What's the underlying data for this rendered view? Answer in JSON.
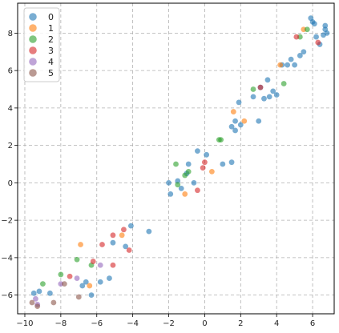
{
  "chart_data": {
    "type": "scatter",
    "title": "",
    "xlabel": "",
    "ylabel": "",
    "xlim": [
      -10.4,
      7.2
    ],
    "ylim": [
      -7.0,
      9.6
    ],
    "x_ticks": [
      -10,
      -8,
      -6,
      -4,
      -2,
      0,
      2,
      4,
      6
    ],
    "y_ticks": [
      -6,
      -4,
      -2,
      0,
      2,
      4,
      6,
      8
    ],
    "grid": true,
    "grid_style": "dashed",
    "legend_position": "top-left",
    "point_alpha": 0.6,
    "series": [
      {
        "name": "0",
        "color": "#1f77b4",
        "points": [
          [
            -9.5,
            -5.9
          ],
          [
            -9.2,
            -5.8
          ],
          [
            -8.6,
            -5.9
          ],
          [
            -6.8,
            -5.5
          ],
          [
            -6.6,
            -5.3
          ],
          [
            -6.3,
            -6.0
          ],
          [
            -5.8,
            -5.3
          ],
          [
            -5.3,
            -5.1
          ],
          [
            -5.1,
            -3.2
          ],
          [
            -4.4,
            -3.4
          ],
          [
            -4.1,
            -2.3
          ],
          [
            -3.1,
            -2.6
          ],
          [
            -2.0,
            0.0
          ],
          [
            -1.9,
            -0.6
          ],
          [
            -1.5,
            0.1
          ],
          [
            -1.3,
            -0.3
          ],
          [
            -1.0,
            0.5
          ],
          [
            -0.9,
            1.0
          ],
          [
            -0.6,
            0.0
          ],
          [
            -0.4,
            1.7
          ],
          [
            0.1,
            1.5
          ],
          [
            1.0,
            1.0
          ],
          [
            1.5,
            1.1
          ],
          [
            1.5,
            3.0
          ],
          [
            1.7,
            3.3
          ],
          [
            1.7,
            2.8
          ],
          [
            1.9,
            4.3
          ],
          [
            2.0,
            3.1
          ],
          [
            2.7,
            4.6
          ],
          [
            3.0,
            3.3
          ],
          [
            3.1,
            5.1
          ],
          [
            3.3,
            4.5
          ],
          [
            3.5,
            5.5
          ],
          [
            3.6,
            4.6
          ],
          [
            3.8,
            4.9
          ],
          [
            4.0,
            4.7
          ],
          [
            4.3,
            6.3
          ],
          [
            4.6,
            6.3
          ],
          [
            4.8,
            6.6
          ],
          [
            5.0,
            6.3
          ],
          [
            5.3,
            6.8
          ],
          [
            5.5,
            7.0
          ],
          [
            5.9,
            8.8
          ],
          [
            6.0,
            8.6
          ],
          [
            6.1,
            8.5
          ],
          [
            6.2,
            7.8
          ],
          [
            6.4,
            7.4
          ],
          [
            6.6,
            7.9
          ],
          [
            6.7,
            8.4
          ],
          [
            6.7,
            8.2
          ],
          [
            6.8,
            8.0
          ]
        ]
      },
      {
        "name": "1",
        "color": "#ff7f0e",
        "points": [
          [
            -6.9,
            -3.3
          ],
          [
            -6.4,
            -5.5
          ],
          [
            -4.6,
            -2.8
          ],
          [
            -1.1,
            -0.6
          ],
          [
            0.4,
            0.6
          ],
          [
            1.6,
            3.8
          ],
          [
            2.2,
            3.3
          ],
          [
            4.2,
            6.3
          ],
          [
            5.5,
            8.2
          ]
        ]
      },
      {
        "name": "2",
        "color": "#2ca02c",
        "points": [
          [
            -9.0,
            -5.4
          ],
          [
            -8.0,
            -4.9
          ],
          [
            -7.1,
            -4.1
          ],
          [
            -6.3,
            -4.4
          ],
          [
            -1.6,
            1.0
          ],
          [
            -1.5,
            -0.1
          ],
          [
            -1.1,
            0.4
          ],
          [
            -0.9,
            0.6
          ],
          [
            0.8,
            2.3
          ],
          [
            0.9,
            2.3
          ],
          [
            2.7,
            5.0
          ],
          [
            4.4,
            5.3
          ],
          [
            5.3,
            7.8
          ],
          [
            5.7,
            8.2
          ]
        ]
      },
      {
        "name": "3",
        "color": "#d62728",
        "points": [
          [
            -7.5,
            -5.0
          ],
          [
            -6.2,
            -4.2
          ],
          [
            -5.7,
            -3.3
          ],
          [
            -5.1,
            -2.8
          ],
          [
            -5.1,
            -4.4
          ],
          [
            -4.5,
            -2.5
          ],
          [
            -4.2,
            -3.6
          ],
          [
            -0.4,
            -0.4
          ],
          [
            -0.1,
            0.8
          ],
          [
            0.0,
            1.1
          ],
          [
            3.1,
            5.1
          ],
          [
            5.1,
            7.8
          ],
          [
            6.3,
            7.5
          ]
        ]
      },
      {
        "name": "4",
        "color": "#9467bd",
        "points": [
          [
            -9.4,
            -6.2
          ],
          [
            -9.3,
            -6.5
          ],
          [
            -8.0,
            -5.4
          ],
          [
            -7.1,
            -5.1
          ],
          [
            -5.8,
            -4.4
          ]
        ]
      },
      {
        "name": "5",
        "color": "#8c564b",
        "points": [
          [
            -9.6,
            -6.4
          ],
          [
            -9.3,
            -6.6
          ],
          [
            -8.4,
            -6.4
          ],
          [
            -7.8,
            -5.4
          ],
          [
            -7.0,
            -6.1
          ]
        ]
      }
    ]
  }
}
